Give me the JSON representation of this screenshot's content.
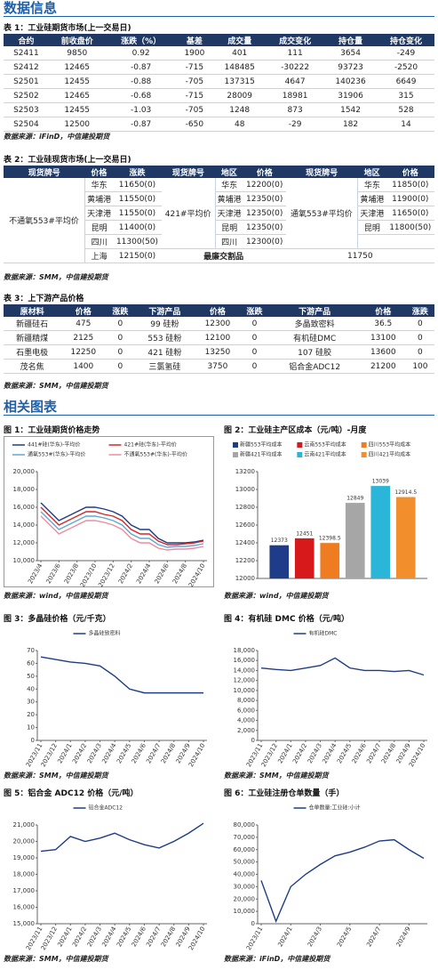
{
  "title": "数据信息",
  "table1": {
    "caption": "表 1：工业硅期货市场(上一交易日)",
    "header": [
      "合约",
      "前收盘价",
      "涨跌（%）",
      "基差",
      "成交量",
      "成交变化",
      "持仓量",
      "持仓变化"
    ],
    "rows": [
      [
        "S2411",
        9850,
        0.92,
        1900,
        401,
        111,
        3654,
        -249
      ],
      [
        "S2412",
        12465,
        -0.87,
        -715,
        148485,
        -30222,
        93723,
        -2520
      ],
      [
        "S2501",
        12455,
        -0.88,
        -705,
        137315,
        4647,
        140236,
        6649
      ],
      [
        "S2502",
        12465,
        -0.68,
        -715,
        28009,
        18981,
        31906,
        315
      ],
      [
        "S2503",
        12455,
        -1.03,
        -705,
        1248,
        873,
        1542,
        528
      ],
      [
        "S2504",
        12500,
        -0.87,
        -650,
        48,
        -29,
        182,
        14
      ]
    ],
    "source": "数据来源：iFinD，中信建投期货"
  },
  "table2": {
    "caption": "表 2：工业硅现货市场(上一交易日)",
    "header": [
      "现货牌号",
      "价格",
      "涨跌",
      "现货牌号",
      "地区",
      "价格",
      "现货牌号",
      "地区",
      "价格"
    ],
    "groups": [
      {
        "label": "不通氧553#平均价",
        "rows": [
          [
            "华东",
            "11650(0)"
          ],
          [
            "黄埔港",
            "11550(0)"
          ],
          [
            "天津港",
            "11550(0)"
          ],
          [
            "昆明",
            "11400(0)"
          ],
          [
            "四川",
            "11300(50)"
          ],
          [
            "上海",
            "12150(0)"
          ]
        ]
      },
      {
        "label": "421#平均价",
        "rows": [
          [
            "华东",
            "12200(0)"
          ],
          [
            "黄埔港",
            "12350(0)"
          ],
          [
            "天津港",
            "12350(0)"
          ],
          [
            "昆明",
            "12350(0)"
          ],
          [
            "四川",
            "12300(0)"
          ]
        ]
      },
      {
        "label": "通氧553#平均价",
        "rows": [
          [
            "华东",
            "11850(0)"
          ],
          [
            "黄埔港",
            "11900(0)"
          ],
          [
            "天津港",
            "11650(0)"
          ],
          [
            "昆明",
            "11800(50)"
          ]
        ]
      }
    ],
    "cheapest_label": "最廉交割品",
    "cheapest_value": "11750",
    "source": "数据来源：SMM，中信建投期货"
  },
  "table3": {
    "caption": "表 3：上下游产品价格",
    "header": [
      "原材料",
      "价格",
      "涨跌",
      "下游产品",
      "价格",
      "涨跌",
      "下游产品",
      "价格",
      "涨跌"
    ],
    "rows": [
      [
        "新疆硅石",
        475,
        0,
        "99 硅粉",
        12300,
        0,
        "多晶致密料",
        36.5,
        0
      ],
      [
        "新疆精煤",
        2125,
        0,
        "553 硅粉",
        12100,
        0,
        "有机硅DMC",
        13100,
        0
      ],
      [
        "石墨电极",
        12250,
        0,
        "421 硅粉",
        13250,
        0,
        "107 硅胶",
        13600,
        0
      ],
      [
        "茂名焦",
        1400,
        0,
        "三氯氢硅",
        3750,
        0,
        "铝合金ADC12",
        21200,
        100
      ]
    ],
    "source": "数据来源：SMM，中信建投期货"
  },
  "section2": "相关图表",
  "chart_data": [
    {
      "type": "line",
      "caption": "图 1：工业硅期货价格走势",
      "source": "数据来源：wind，中信建投期货",
      "categories": [
        "2023/4",
        null,
        "2023/6",
        null,
        "2023/8",
        null,
        "2023/10",
        null,
        "2023/12",
        null,
        "2024/2",
        null,
        "2024/4",
        null,
        "2024/6",
        null,
        "2024/8",
        null,
        "2024/10"
      ],
      "series": [
        {
          "name": "441#硅(华东)-平均价",
          "color": "#1f3c88",
          "values": [
            16500,
            15500,
            14500,
            15000,
            15500,
            16000,
            16000,
            15800,
            15500,
            15000,
            14000,
            13500,
            13500,
            12500,
            12000,
            12000,
            12000,
            12100,
            12300
          ]
        },
        {
          "name": "421#硅(华东)-平均价",
          "color": "#d62728",
          "values": [
            16000,
            15000,
            14000,
            14500,
            15000,
            15500,
            15500,
            15200,
            15000,
            14500,
            13500,
            13000,
            13000,
            12200,
            11800,
            11800,
            11900,
            12000,
            12200
          ]
        },
        {
          "name": "通氧553#(华东)-平均价",
          "color": "#5fa8d3",
          "values": [
            15500,
            14500,
            13500,
            14000,
            14500,
            15000,
            15000,
            14800,
            14500,
            14000,
            13000,
            12500,
            12500,
            11800,
            11500,
            11600,
            11600,
            11700,
            11900
          ]
        },
        {
          "name": "不通氧553#(华东)-平均价",
          "color": "#f08aa0",
          "values": [
            15000,
            14000,
            13000,
            13500,
            14000,
            14500,
            14500,
            14300,
            14000,
            13500,
            12500,
            12000,
            12000,
            11400,
            11200,
            11300,
            11300,
            11400,
            11600
          ]
        }
      ],
      "ylim": [
        10000,
        20000
      ],
      "yticks": [
        {
          "value": 10000,
          "label": "10,000"
        },
        {
          "value": 12000,
          "label": "12,000"
        },
        {
          "value": 14000,
          "label": "14,000"
        },
        {
          "value": 16000,
          "label": "16,000"
        },
        {
          "value": 18000,
          "label": "18,000"
        },
        {
          "value": 20000,
          "label": "20,000"
        }
      ]
    },
    {
      "type": "bar",
      "caption": "图 2：工业硅主产区成本（元/吨）-月度",
      "source": "数据来源：wind，中信建投期货",
      "series": [
        {
          "name": "新疆553平均成本",
          "color": "#1f3c88",
          "values": [
            12373
          ]
        },
        {
          "name": "云南553平均成本",
          "color": "#d7191c",
          "values": [
            12451
          ]
        },
        {
          "name": "四川553平均成本",
          "color": "#f07c22",
          "values": [
            12398.5
          ]
        },
        {
          "name": "新疆421平均成本",
          "color": "#a6a6a6",
          "values": [
            12849
          ]
        },
        {
          "name": "云南421平均成本",
          "color": "#2bb5d8",
          "values": [
            13039
          ]
        },
        {
          "name": "四川421平均成本",
          "color": "#f28e2b",
          "values": [
            12914.5
          ]
        }
      ],
      "ylim": [
        12000,
        13200
      ],
      "yticks": [
        12000,
        12200,
        12400,
        12600,
        12800,
        13000,
        13200
      ]
    },
    {
      "type": "line",
      "caption": "图 3：多晶硅价格（元/千克）",
      "source": "数据来源：SMM，中信建投期货",
      "categories": [
        "2023/11",
        "2023/12",
        "2024/1",
        "2024/2",
        "2024/3",
        "2024/4",
        "2024/5",
        "2024/6",
        "2024/7",
        "2024/8",
        "2024/9",
        "2024/10"
      ],
      "series": [
        {
          "name": "多晶硅致密料",
          "color": "#1f3c88",
          "values": [
            65,
            63,
            61,
            60,
            58,
            50,
            40,
            37,
            37,
            37,
            37,
            37
          ]
        }
      ],
      "ylim": [
        0,
        70
      ],
      "yticks": [
        0,
        10,
        20,
        30,
        40,
        50,
        60,
        70
      ]
    },
    {
      "type": "line",
      "caption": "图 4：有机硅 DMC 价格（元/吨）",
      "source": "数据来源：SMM，中信建投期货",
      "categories": [
        "2023/11",
        "2023/12",
        "2024/1",
        "2024/2",
        "2024/3",
        "2024/4",
        "2024/5",
        "2024/6",
        "2024/7",
        "2024/8",
        "2024/9",
        "2024/10"
      ],
      "series": [
        {
          "name": "有机硅DMC",
          "color": "#1f3c88",
          "values": [
            14500,
            14200,
            14000,
            14500,
            15000,
            16500,
            14500,
            14000,
            14000,
            13800,
            14000,
            13100
          ]
        }
      ],
      "ylim": [
        0,
        18000
      ],
      "yticks": [
        0,
        {
          "value": 2000,
          "label": "2,000"
        },
        {
          "value": 4000,
          "label": "4,000"
        },
        {
          "value": 6000,
          "label": "6,000"
        },
        {
          "value": 8000,
          "label": "8,000"
        },
        {
          "value": 10000,
          "label": "10,000"
        },
        {
          "value": 12000,
          "label": "12,000"
        },
        {
          "value": 14000,
          "label": "14,000"
        },
        {
          "value": 16000,
          "label": "16,000"
        },
        {
          "value": 18000,
          "label": "18,000"
        }
      ]
    },
    {
      "type": "line",
      "caption": "图 5：铝合金 ADC12 价格（元/吨）",
      "source": "数据来源：SMM，中信建投期货",
      "categories": [
        "2023/11",
        "2023/12",
        "2024/1",
        "2024/2",
        "2024/3",
        "2024/4",
        "2024/5",
        "2024/6",
        "2024/7",
        "2024/8",
        "2024/9",
        "2024/10"
      ],
      "series": [
        {
          "name": "铝合金ADC12",
          "color": "#1f3c88",
          "values": [
            19400,
            19500,
            20300,
            20000,
            20200,
            20500,
            20100,
            19800,
            19600,
            20000,
            20500,
            21100
          ]
        }
      ],
      "ylim": [
        15000,
        21000
      ],
      "yticks": [
        {
          "value": 15000,
          "label": "15,000"
        },
        {
          "value": 16000,
          "label": "16,000"
        },
        {
          "value": 17000,
          "label": "17,000"
        },
        {
          "value": 18000,
          "label": "18,000"
        },
        {
          "value": 19000,
          "label": "19,000"
        },
        {
          "value": 20000,
          "label": "20,000"
        },
        {
          "value": 21000,
          "label": "21,000"
        }
      ]
    },
    {
      "type": "line",
      "caption": "图 6：工业硅注册仓单数量（手）",
      "source": "数据来源：iFinD，中信建投期货",
      "categories": [
        "2023/11",
        null,
        "2024/1",
        null,
        "2024/3",
        null,
        "2024/5",
        null,
        "2024/7",
        null,
        "2024/9",
        null
      ],
      "series": [
        {
          "name": "仓单数量:工业硅:小计",
          "color": "#1f3c88",
          "values": [
            35000,
            2000,
            30000,
            40000,
            48000,
            55000,
            58000,
            62000,
            67000,
            68000,
            60000,
            53000
          ]
        }
      ],
      "ylim": [
        0,
        80000
      ],
      "yticks": [
        0,
        {
          "value": 10000,
          "label": "10,000"
        },
        {
          "value": 20000,
          "label": "20,000"
        },
        {
          "value": 30000,
          "label": "30,000"
        },
        {
          "value": 40000,
          "label": "40,000"
        },
        {
          "value": 50000,
          "label": "50,000"
        },
        {
          "value": 60000,
          "label": "60,000"
        },
        {
          "value": 70000,
          "label": "70,000"
        },
        {
          "value": 80000,
          "label": "80,000"
        }
      ]
    }
  ]
}
